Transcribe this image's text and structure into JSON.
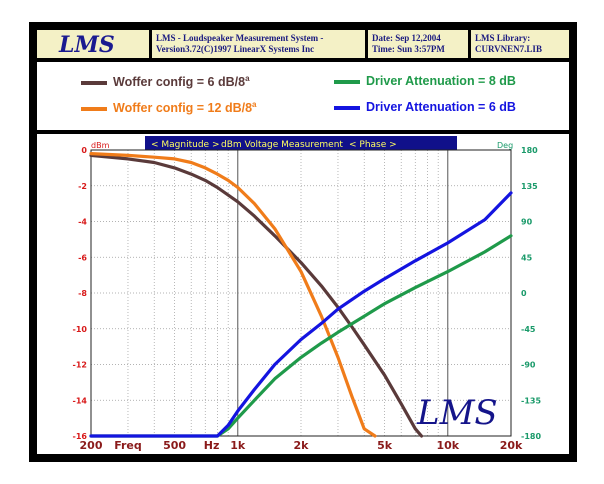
{
  "header": {
    "title_line1": "LMS - Loudspeaker Measurement System -",
    "title_line2": "Version3.72(C)1997 LinearX Systems Inc",
    "date_line": "Date: Sep 12,2004",
    "time_line": "Time: Sun  3:57PM",
    "library_line1": "LMS Library:",
    "library_line2": "CURVNEN7.LIB",
    "logo_text": "LMS"
  },
  "plot_header": {
    "magnitude": "< Magnitude >",
    "measurement": "dBm Voltage Measurement",
    "phase": "< Phase >"
  },
  "watermark": "LMS",
  "colors": {
    "woffer6": "#5a3a3a",
    "woffer12": "#f07c1a",
    "driver8": "#1f9a4a",
    "driver6": "#1414e0",
    "plot_bg": "#ffffff",
    "frame": "#000000",
    "header_bg": "#f4f1c6",
    "header_text": "#1a1a80",
    "plot_header_bg": "#10108a",
    "plot_header_text": "#ffff60",
    "left_axis_text": "#d81a1a",
    "right_axis_text": "#1a9a6a",
    "bottom_axis_text": "#8a1a1a"
  },
  "chart_data": {
    "type": "line",
    "x_scale": "log",
    "xlim": [
      200,
      20000
    ],
    "ylim_left": [
      -16,
      0
    ],
    "ylim_right": [
      -180,
      180
    ],
    "yunit_left": "dBm",
    "yunit_right": "Deg",
    "yticks_left": [
      0,
      -2,
      -4,
      -6,
      -8,
      -10,
      -12,
      -14,
      -16
    ],
    "yticks_right": [
      180,
      135,
      90,
      45,
      0,
      -45,
      -90,
      -135,
      -180
    ],
    "xtick_labels": [
      {
        "x": 200,
        "label": "200"
      },
      {
        "x": 300,
        "label": "Freq"
      },
      {
        "x": 500,
        "label": "500"
      },
      {
        "x": 750,
        "label": "Hz"
      },
      {
        "x": 1000,
        "label": "1k"
      },
      {
        "x": 2000,
        "label": "2k"
      },
      {
        "x": 5000,
        "label": "5k"
      },
      {
        "x": 10000,
        "label": "10k"
      },
      {
        "x": 20000,
        "label": "20k"
      }
    ],
    "series": [
      {
        "name": "Woffer config = 6 dB/8",
        "name_sup": "a",
        "axis": "left",
        "color": "#5a3a3a",
        "x": [
          200,
          300,
          400,
          500,
          600,
          700,
          800,
          1000,
          1200,
          1500,
          2000,
          2500,
          3000,
          3500,
          4000,
          5000,
          6000,
          7000,
          7500
        ],
        "y": [
          -0.3,
          -0.5,
          -0.7,
          -1.0,
          -1.35,
          -1.7,
          -2.1,
          -2.9,
          -3.7,
          -4.8,
          -6.3,
          -7.6,
          -8.8,
          -9.9,
          -10.9,
          -12.6,
          -14.2,
          -15.6,
          -16
        ]
      },
      {
        "name": "Woffer config = 12 dB/8",
        "name_sup": "a",
        "axis": "left",
        "color": "#f07c1a",
        "x": [
          200,
          300,
          400,
          500,
          600,
          700,
          800,
          900,
          1000,
          1200,
          1500,
          2000,
          2500,
          3000,
          3500,
          4000,
          4500
        ],
        "y": [
          -0.2,
          -0.3,
          -0.4,
          -0.5,
          -0.7,
          -1.0,
          -1.35,
          -1.7,
          -2.1,
          -3.0,
          -4.4,
          -6.8,
          -9.3,
          -11.6,
          -13.8,
          -15.6,
          -16
        ]
      },
      {
        "name": "Driver Attenuation = 8 dB",
        "axis": "left",
        "color": "#1f9a4a",
        "x": [
          200,
          500,
          800,
          900,
          1000,
          1200,
          1500,
          2000,
          2500,
          3000,
          4000,
          5000,
          7000,
          10000,
          15000,
          20000
        ],
        "y": [
          -16,
          -16,
          -16,
          -15.6,
          -15.0,
          -14.0,
          -12.8,
          -11.6,
          -10.8,
          -10.2,
          -9.3,
          -8.6,
          -7.7,
          -6.8,
          -5.7,
          -4.8
        ]
      },
      {
        "name": "Driver Attenuation = 6 dB",
        "axis": "left",
        "color": "#1414e0",
        "x": [
          200,
          500,
          800,
          900,
          1000,
          1200,
          1500,
          2000,
          2500,
          3000,
          4000,
          5000,
          7000,
          10000,
          15000,
          20000
        ],
        "y": [
          -16,
          -16,
          -16,
          -15.4,
          -14.6,
          -13.4,
          -12.0,
          -10.6,
          -9.7,
          -8.9,
          -7.9,
          -7.2,
          -6.2,
          -5.2,
          -3.9,
          -2.4
        ]
      }
    ]
  }
}
